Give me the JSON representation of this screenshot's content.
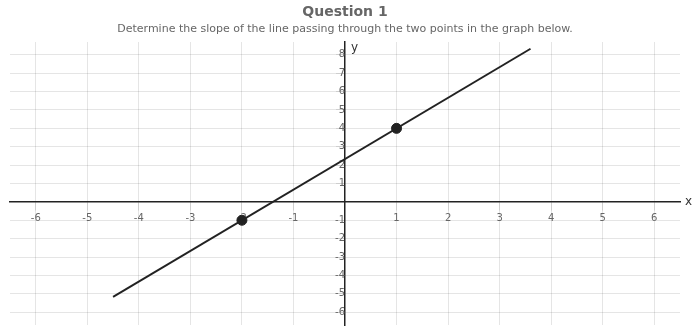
{
  "chart_data": {
    "type": "scatter",
    "title": "Question 1",
    "subtitle": "Determine the slope of the line passing through the two points in the graph below.",
    "xlabel": "x",
    "ylabel": "y",
    "series": [
      {
        "type": "line",
        "color": "#222222",
        "x": [
          -4.5,
          3.6
        ],
        "values": [
          -5.166666666666667,
          8.333333333333334
        ]
      },
      {
        "type": "scatter",
        "color": "#222222",
        "x": [
          -2,
          1
        ],
        "values": [
          -1,
          4
        ]
      }
    ],
    "xlim": [
      -6.5,
      6.5
    ],
    "ylim": [
      -6.7,
      8.7
    ],
    "xticks": [
      -6,
      -5,
      -4,
      -3,
      -2,
      -1,
      1,
      2,
      3,
      4,
      5,
      6
    ],
    "yticks": [
      -6,
      -5,
      -4,
      -3,
      -2,
      -1,
      1,
      2,
      3,
      4,
      5,
      6,
      7,
      8
    ],
    "grid": true
  }
}
